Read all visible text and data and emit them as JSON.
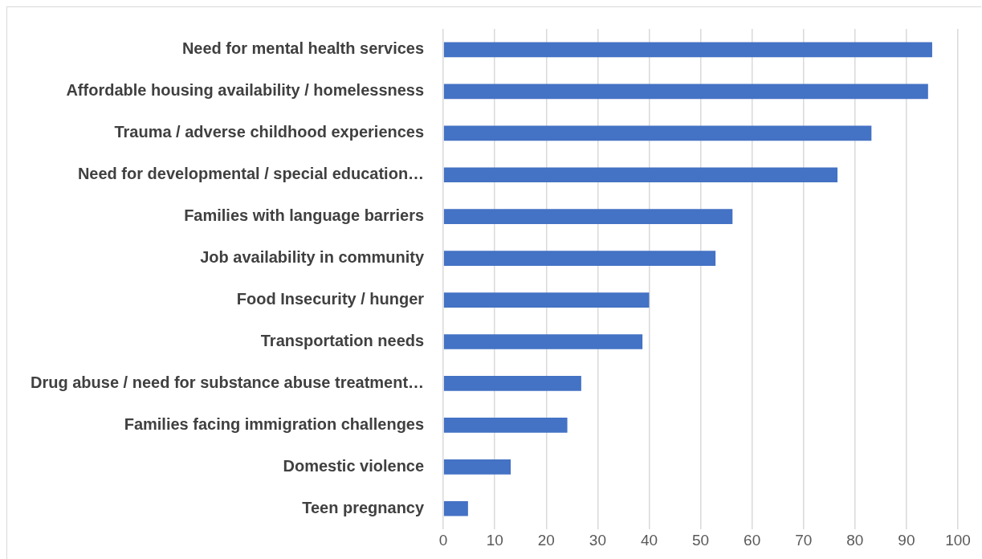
{
  "chart_data": {
    "type": "bar",
    "orientation": "horizontal",
    "categories": [
      "Need for mental health services",
      "Affordable housing availability / homelessness",
      "Trauma / adverse childhood experiences",
      "Need for developmental / special education…",
      "Families with language barriers",
      "Job availability in community",
      "Food Insecurity / hunger",
      "Transportation needs",
      "Drug abuse / need for substance abuse treatment…",
      "Families facing immigration challenges",
      "Domestic violence",
      "Teen pregnancy"
    ],
    "values": [
      95,
      94.2,
      83.2,
      76.6,
      56.2,
      52.9,
      40,
      38.7,
      26.8,
      24.1,
      13.1,
      4.8
    ],
    "color": "#4472c4",
    "xlim": [
      0,
      100
    ],
    "xticks": [
      0,
      10,
      20,
      30,
      40,
      50,
      60,
      70,
      80,
      90,
      100
    ],
    "grid": "x"
  }
}
